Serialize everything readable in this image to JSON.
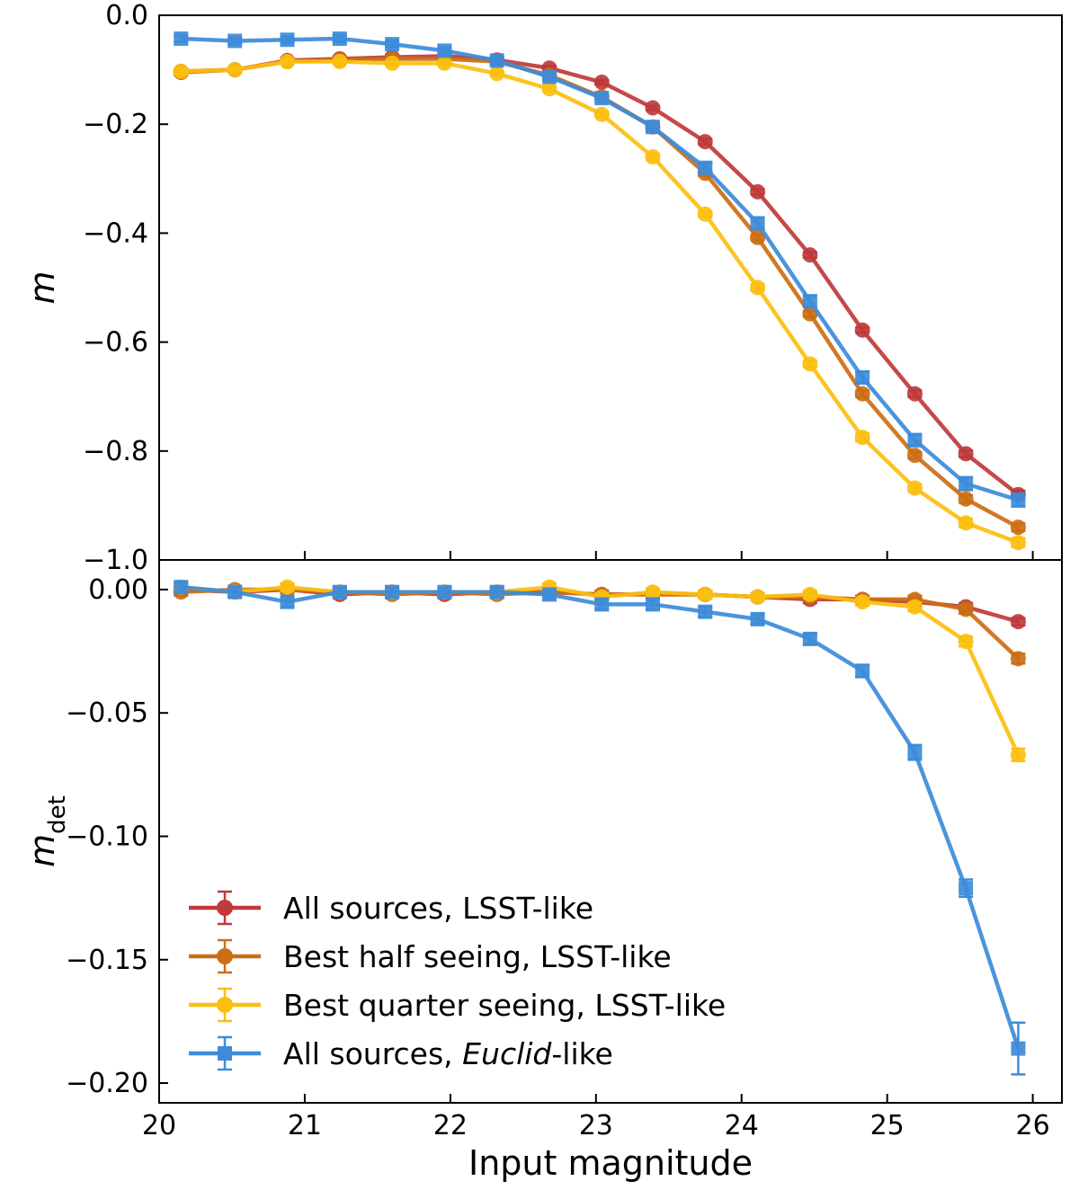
{
  "chart_data": {
    "type": "line",
    "xlabel": "Input magnitude",
    "xlim": [
      20.0,
      26.2
    ],
    "xticks": [
      20,
      21,
      22,
      23,
      24,
      25,
      26
    ],
    "x": [
      20.15,
      20.52,
      20.88,
      21.24,
      21.6,
      21.96,
      22.32,
      22.68,
      23.04,
      23.39,
      23.75,
      24.11,
      24.47,
      24.83,
      25.19,
      25.54,
      25.9
    ],
    "series_styles": [
      {
        "name": "All sources, LSST-like",
        "name_main": "All sources, ",
        "name_italic": "",
        "name_tail": "LSST-like",
        "color": "#c0393b",
        "marker": "circle"
      },
      {
        "name": "Best half seeing, LSST-like",
        "name_main": "Best half seeing, ",
        "name_italic": "",
        "name_tail": "LSST-like",
        "color": "#cc6e14",
        "marker": "circle"
      },
      {
        "name": "Best quarter seeing, LSST-like",
        "name_main": "Best quarter seeing, ",
        "name_italic": "",
        "name_tail": "LSST-like",
        "color": "#fbbf0f",
        "marker": "circle"
      },
      {
        "name": "All sources, Euclid-like",
        "name_main": "All sources, ",
        "name_italic": "Euclid",
        "name_tail": "-like",
        "color": "#3d8bd9",
        "marker": "square"
      }
    ],
    "legend_position": "lower-left",
    "panels": [
      {
        "ylabel": "m",
        "ylim": [
          -1.0,
          0.0
        ],
        "yticks": [
          0.0,
          -0.2,
          -0.4,
          -0.6,
          -0.8,
          -1.0
        ],
        "ytick_labels": [
          "0.0",
          "−0.2",
          "−0.4",
          "−0.6",
          "−0.8",
          "−1.0"
        ],
        "series": [
          {
            "name": "All sources, LSST-like",
            "values": [
              -0.103,
              -0.1,
              -0.083,
              -0.08,
              -0.077,
              -0.075,
              -0.082,
              -0.097,
              -0.123,
              -0.17,
              -0.232,
              -0.324,
              -0.44,
              -0.578,
              -0.695,
              -0.805,
              -0.88
            ],
            "errors": [
              0.005,
              0.004,
              0.004,
              0.004,
              0.004,
              0.004,
              0.004,
              0.004,
              0.004,
              0.004,
              0.005,
              0.005,
              0.005,
              0.005,
              0.006,
              0.006,
              0.007
            ]
          },
          {
            "name": "Best half seeing, LSST-like",
            "values": [
              -0.105,
              -0.1,
              -0.085,
              -0.082,
              -0.08,
              -0.08,
              -0.085,
              -0.11,
              -0.15,
              -0.205,
              -0.29,
              -0.408,
              -0.548,
              -0.695,
              -0.808,
              -0.888,
              -0.94
            ],
            "errors": [
              0.005,
              0.004,
              0.004,
              0.004,
              0.004,
              0.004,
              0.004,
              0.004,
              0.004,
              0.004,
              0.005,
              0.005,
              0.005,
              0.006,
              0.006,
              0.007,
              0.007
            ]
          },
          {
            "name": "Best quarter seeing, LSST-like",
            "values": [
              -0.103,
              -0.1,
              -0.085,
              -0.085,
              -0.088,
              -0.088,
              -0.107,
              -0.135,
              -0.182,
              -0.26,
              -0.365,
              -0.5,
              -0.64,
              -0.775,
              -0.868,
              -0.932,
              -0.968
            ],
            "errors": [
              0.005,
              0.004,
              0.004,
              0.004,
              0.004,
              0.004,
              0.004,
              0.004,
              0.004,
              0.005,
              0.005,
              0.006,
              0.006,
              0.007,
              0.007,
              0.008,
              0.008
            ]
          },
          {
            "name": "All sources, Euclid-like",
            "values": [
              -0.043,
              -0.047,
              -0.045,
              -0.043,
              -0.053,
              -0.065,
              -0.083,
              -0.113,
              -0.152,
              -0.205,
              -0.28,
              -0.382,
              -0.525,
              -0.665,
              -0.78,
              -0.86,
              -0.89
            ],
            "errors": [
              0.006,
              0.006,
              0.006,
              0.006,
              0.006,
              0.006,
              0.006,
              0.006,
              0.007,
              0.008,
              0.009,
              0.01,
              0.01,
              0.011,
              0.011,
              0.012,
              0.012
            ]
          }
        ]
      },
      {
        "ylabel": "m",
        "ylabel_sub": "det",
        "ylim": [
          -0.208,
          0.012
        ],
        "yticks": [
          0.0,
          -0.05,
          -0.1,
          -0.15,
          -0.2
        ],
        "ytick_labels": [
          "0.00",
          "−0.05",
          "−0.10",
          "−0.15",
          "−0.20"
        ],
        "series": [
          {
            "name": "All sources, LSST-like",
            "values": [
              0.0,
              -0.001,
              0.0,
              -0.002,
              -0.001,
              -0.002,
              -0.001,
              -0.001,
              -0.002,
              -0.002,
              -0.002,
              -0.003,
              -0.004,
              -0.004,
              -0.005,
              -0.007,
              -0.013
            ],
            "errors": [
              0.0015,
              0.0015,
              0.0015,
              0.0015,
              0.0015,
              0.0015,
              0.0015,
              0.0015,
              0.0015,
              0.0015,
              0.0015,
              0.0015,
              0.0015,
              0.0015,
              0.0015,
              0.0015,
              0.0015
            ]
          },
          {
            "name": "Best half seeing, LSST-like",
            "values": [
              -0.001,
              0.0,
              0.0,
              -0.001,
              -0.002,
              -0.001,
              -0.002,
              -0.001,
              -0.002,
              -0.002,
              -0.002,
              -0.003,
              -0.003,
              -0.004,
              -0.004,
              -0.008,
              -0.028
            ],
            "errors": [
              0.0015,
              0.0015,
              0.0015,
              0.0015,
              0.0015,
              0.0015,
              0.0015,
              0.0015,
              0.0015,
              0.0015,
              0.0015,
              0.0015,
              0.0015,
              0.0015,
              0.0015,
              0.0018,
              0.002
            ]
          },
          {
            "name": "Best quarter seeing, LSST-like",
            "values": [
              0.001,
              -0.001,
              0.001,
              -0.001,
              -0.001,
              -0.001,
              -0.001,
              0.001,
              -0.003,
              -0.001,
              -0.002,
              -0.003,
              -0.002,
              -0.005,
              -0.007,
              -0.021,
              -0.067
            ],
            "errors": [
              0.0015,
              0.0015,
              0.0015,
              0.0015,
              0.0015,
              0.0015,
              0.0015,
              0.0015,
              0.0015,
              0.0015,
              0.0015,
              0.0015,
              0.0015,
              0.0015,
              0.0018,
              0.002,
              0.0025
            ]
          },
          {
            "name": "All sources, Euclid-like",
            "values": [
              0.001,
              -0.001,
              -0.005,
              -0.001,
              -0.001,
              -0.001,
              -0.001,
              -0.002,
              -0.006,
              -0.006,
              -0.009,
              -0.012,
              -0.02,
              -0.033,
              -0.066,
              -0.121,
              -0.186
            ],
            "errors": [
              0.002,
              0.002,
              0.002,
              0.002,
              0.002,
              0.002,
              0.002,
              0.002,
              0.002,
              0.002,
              0.002,
              0.002,
              0.0022,
              0.0025,
              0.003,
              0.0035,
              0.0105
            ]
          }
        ]
      }
    ]
  }
}
